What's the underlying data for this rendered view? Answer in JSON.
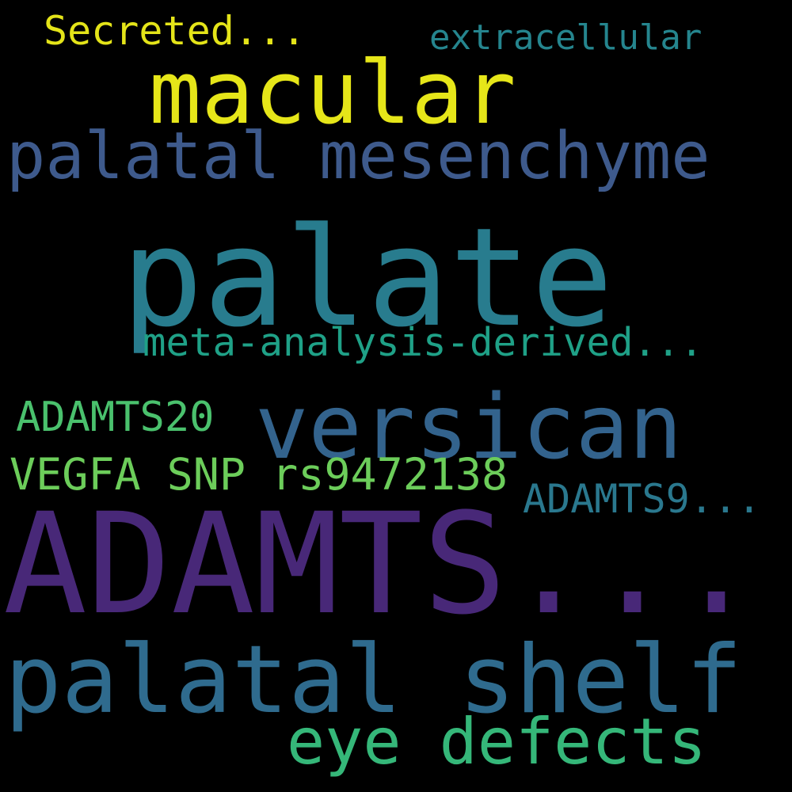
{
  "background": "#000000",
  "words": [
    {
      "text": "Secreted...",
      "color": "#e4e419"
    },
    {
      "text": "extracellular",
      "color": "#25858e"
    },
    {
      "text": "macular",
      "color": "#e6e619"
    },
    {
      "text": "palatal mesenchyme",
      "color": "#3e5a8c"
    },
    {
      "text": "palate",
      "color": "#287c8e"
    },
    {
      "text": "meta-analysis-derived...",
      "color": "#1fa187"
    },
    {
      "text": "versican",
      "color": "#33638d"
    },
    {
      "text": "ADAMTS20",
      "color": "#4ac16d"
    },
    {
      "text": "VEGFA SNP rs9472138",
      "color": "#6ccd5a"
    },
    {
      "text": "ADAMTS9...",
      "color": "#2a788e"
    },
    {
      "text": "ADAMTS...",
      "color": "#482878"
    },
    {
      "text": "palatal shelf",
      "color": "#2f6b8e"
    },
    {
      "text": "eye defects",
      "color": "#35b779"
    }
  ]
}
